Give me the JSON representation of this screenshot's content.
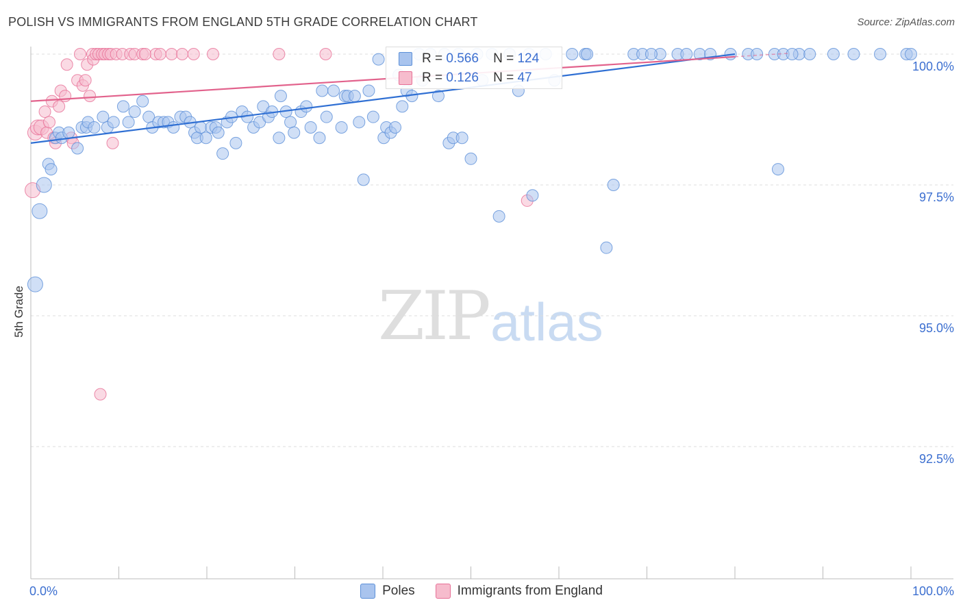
{
  "title": "POLISH VS IMMIGRANTS FROM ENGLAND 5TH GRADE CORRELATION CHART",
  "source": "Source: ZipAtlas.com",
  "watermark": {
    "zip": "ZIP",
    "atlas": "atlas"
  },
  "colors": {
    "blue": "#5b8fd8",
    "blue_fill": "#a9c4ee",
    "pink": "#e76f96",
    "pink_fill": "#f6bccd",
    "axis_text": "#3c6fd0"
  },
  "stats": {
    "rows": [
      {
        "r_label": "R =",
        "r_value": "0.566",
        "n_label": "N =",
        "n_value": "124"
      },
      {
        "r_label": "R =",
        "r_value": "0.126",
        "n_label": "N =",
        "n_value": "47"
      }
    ]
  },
  "legend": {
    "series1": "Poles",
    "series2": "Immigrants from England"
  },
  "chart_data": {
    "type": "scatter",
    "title": "POLISH VS IMMIGRANTS FROM ENGLAND 5TH GRADE CORRELATION CHART",
    "xlabel": "",
    "ylabel": "5th Grade",
    "xlim": [
      0,
      100
    ],
    "ylim": [
      90.3,
      100.2
    ],
    "x_tick_labels": [
      "0.0%",
      "100.0%"
    ],
    "y_ticks": [
      100.0,
      97.5,
      95.0,
      92.5
    ],
    "y_tick_labels": [
      "100.0%",
      "97.5%",
      "95.0%",
      "92.5%"
    ],
    "series": [
      {
        "name": "Poles",
        "r": 0.566,
        "n": 124,
        "trend": {
          "x": [
            0,
            80
          ],
          "y": [
            98.3,
            100.0
          ]
        },
        "points": [
          [
            0.5,
            95.6
          ],
          [
            1,
            97
          ],
          [
            1.5,
            97.5
          ],
          [
            2,
            97.9
          ],
          [
            2.3,
            97.8
          ],
          [
            2.8,
            98.4
          ],
          [
            3.2,
            98.5
          ],
          [
            3.5,
            98.4
          ],
          [
            4.3,
            98.5
          ],
          [
            5.3,
            98.2
          ],
          [
            5.8,
            98.6
          ],
          [
            6.3,
            98.6
          ],
          [
            6.5,
            98.7
          ],
          [
            7.2,
            98.6
          ],
          [
            8.2,
            98.8
          ],
          [
            8.7,
            98.6
          ],
          [
            9.4,
            98.7
          ],
          [
            10.5,
            99
          ],
          [
            11.1,
            98.7
          ],
          [
            11.8,
            98.9
          ],
          [
            12.7,
            99.1
          ],
          [
            13.4,
            98.8
          ],
          [
            13.8,
            98.6
          ],
          [
            14.5,
            98.7
          ],
          [
            15.1,
            98.7
          ],
          [
            15.6,
            98.7
          ],
          [
            16.2,
            98.6
          ],
          [
            17,
            98.8
          ],
          [
            17.6,
            98.8
          ],
          [
            18.1,
            98.7
          ],
          [
            18.6,
            98.5
          ],
          [
            18.9,
            98.4
          ],
          [
            19.3,
            98.6
          ],
          [
            19.9,
            98.4
          ],
          [
            20.5,
            98.6
          ],
          [
            21,
            98.6
          ],
          [
            21.3,
            98.5
          ],
          [
            21.8,
            98.1
          ],
          [
            22.3,
            98.7
          ],
          [
            22.8,
            98.8
          ],
          [
            23.3,
            98.3
          ],
          [
            24,
            98.9
          ],
          [
            24.6,
            98.8
          ],
          [
            25.3,
            98.6
          ],
          [
            26,
            98.7
          ],
          [
            26.4,
            99
          ],
          [
            27,
            98.8
          ],
          [
            27.4,
            98.9
          ],
          [
            28.2,
            98.4
          ],
          [
            28.4,
            99.2
          ],
          [
            29,
            98.9
          ],
          [
            29.5,
            98.7
          ],
          [
            29.9,
            98.5
          ],
          [
            30.7,
            98.9
          ],
          [
            31.3,
            99
          ],
          [
            31.8,
            98.6
          ],
          [
            32.8,
            98.4
          ],
          [
            33.1,
            99.3
          ],
          [
            33.6,
            98.8
          ],
          [
            34.4,
            99.3
          ],
          [
            35.3,
            98.6
          ],
          [
            35.7,
            99.2
          ],
          [
            36,
            99.2
          ],
          [
            36.8,
            99.2
          ],
          [
            37.3,
            98.7
          ],
          [
            37.8,
            97.6
          ],
          [
            38.4,
            99.3
          ],
          [
            38.9,
            98.8
          ],
          [
            39.5,
            99.9
          ],
          [
            40.1,
            98.4
          ],
          [
            40.4,
            98.6
          ],
          [
            40.9,
            98.5
          ],
          [
            41.4,
            98.6
          ],
          [
            41.8,
            99.6
          ],
          [
            42.2,
            99
          ],
          [
            42.7,
            99.3
          ],
          [
            43.3,
            99.2
          ],
          [
            44.1,
            100
          ],
          [
            44.5,
            99.5
          ],
          [
            45.4,
            100
          ],
          [
            46.3,
            99.2
          ],
          [
            47,
            100
          ],
          [
            47.5,
            98.3
          ],
          [
            48,
            98.4
          ],
          [
            48.6,
            100
          ],
          [
            49,
            98.4
          ],
          [
            50,
            98
          ],
          [
            50.7,
            100
          ],
          [
            51.3,
            99.5
          ],
          [
            52.4,
            100
          ],
          [
            53.2,
            96.9
          ],
          [
            54.4,
            100
          ],
          [
            55.4,
            99.3
          ],
          [
            56.6,
            100
          ],
          [
            57,
            97.3
          ],
          [
            58.5,
            100
          ],
          [
            59.5,
            99.5
          ],
          [
            61.5,
            100
          ],
          [
            63,
            100
          ],
          [
            65.4,
            96.3
          ],
          [
            66.2,
            97.5
          ],
          [
            68.5,
            100
          ],
          [
            69.5,
            100
          ],
          [
            71.5,
            100
          ],
          [
            73.5,
            100
          ],
          [
            74.5,
            100
          ],
          [
            76,
            100
          ],
          [
            77.2,
            100
          ],
          [
            79.5,
            100
          ],
          [
            81.5,
            100
          ],
          [
            84.5,
            100
          ],
          [
            85.5,
            100
          ],
          [
            87.3,
            100
          ],
          [
            88.5,
            100
          ],
          [
            91.2,
            100
          ],
          [
            93.5,
            100
          ],
          [
            96.5,
            100
          ],
          [
            99.5,
            100
          ],
          [
            63.2,
            100
          ],
          [
            70.5,
            100
          ],
          [
            82.5,
            100
          ],
          [
            84.9,
            97.8
          ],
          [
            86.5,
            100
          ],
          [
            100,
            100
          ]
        ]
      },
      {
        "name": "Immigrants from England",
        "r": 0.126,
        "n": 47,
        "trend": {
          "x": [
            0,
            80
          ],
          "y": [
            99.1,
            99.95
          ]
        },
        "points": [
          [
            0.2,
            97.4
          ],
          [
            0.5,
            98.5
          ],
          [
            0.8,
            98.6
          ],
          [
            1.2,
            98.6
          ],
          [
            1.6,
            98.9
          ],
          [
            1.8,
            98.5
          ],
          [
            2.1,
            98.7
          ],
          [
            2.4,
            99.1
          ],
          [
            2.6,
            98.4
          ],
          [
            2.8,
            98.3
          ],
          [
            3.2,
            99
          ],
          [
            3.4,
            99.3
          ],
          [
            3.9,
            99.2
          ],
          [
            4.1,
            99.8
          ],
          [
            4.6,
            98.4
          ],
          [
            4.8,
            98.3
          ],
          [
            5.3,
            99.5
          ],
          [
            5.6,
            100
          ],
          [
            5.9,
            99.4
          ],
          [
            6.2,
            99.5
          ],
          [
            6.4,
            99.8
          ],
          [
            6.7,
            99.2
          ],
          [
            7,
            100
          ],
          [
            7.1,
            99.9
          ],
          [
            7.4,
            100
          ],
          [
            7.7,
            100
          ],
          [
            7.9,
            93.5
          ],
          [
            8.1,
            100
          ],
          [
            8.4,
            100
          ],
          [
            8.8,
            100
          ],
          [
            9.1,
            100
          ],
          [
            9.3,
            98.3
          ],
          [
            9.7,
            100
          ],
          [
            10.4,
            100
          ],
          [
            11.3,
            100
          ],
          [
            11.8,
            100
          ],
          [
            12.7,
            100
          ],
          [
            13,
            100
          ],
          [
            14.2,
            100
          ],
          [
            14.7,
            100
          ],
          [
            16,
            100
          ],
          [
            17.2,
            100
          ],
          [
            18.5,
            100
          ],
          [
            20.7,
            100
          ],
          [
            28.2,
            100
          ],
          [
            33.5,
            100
          ],
          [
            56.4,
            97.2
          ]
        ]
      }
    ]
  }
}
